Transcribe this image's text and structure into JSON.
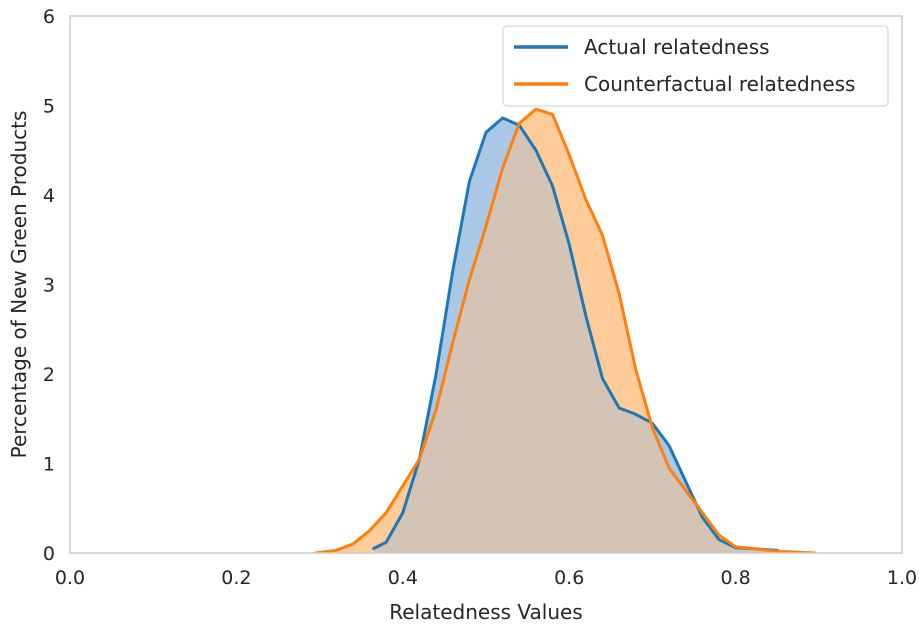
{
  "chart_data": {
    "type": "area",
    "title": "",
    "xlabel": "Relatedness Values",
    "ylabel": "Percentage of New Green Products",
    "xlim": [
      0.0,
      1.0
    ],
    "ylim": [
      0,
      6
    ],
    "xticks": [
      0.0,
      0.2,
      0.4,
      0.6,
      0.8,
      1.0
    ],
    "xtick_labels": [
      "0.0",
      "0.2",
      "0.4",
      "0.6",
      "0.8",
      "1.0"
    ],
    "yticks": [
      0,
      1,
      2,
      3,
      4,
      5,
      6
    ],
    "ytick_labels": [
      "0",
      "1",
      "2",
      "3",
      "4",
      "5",
      "6"
    ],
    "grid": false,
    "legend_position": "top-right",
    "series": [
      {
        "name": "Actual relatedness",
        "color": "#1f77b4",
        "fill_color": "#a8c8e6",
        "points": [
          [
            0.365,
            0.05
          ],
          [
            0.38,
            0.12
          ],
          [
            0.4,
            0.45
          ],
          [
            0.42,
            1.05
          ],
          [
            0.44,
            2.0
          ],
          [
            0.46,
            3.15
          ],
          [
            0.48,
            4.15
          ],
          [
            0.5,
            4.7
          ],
          [
            0.52,
            4.86
          ],
          [
            0.54,
            4.78
          ],
          [
            0.56,
            4.5
          ],
          [
            0.58,
            4.1
          ],
          [
            0.6,
            3.45
          ],
          [
            0.62,
            2.65
          ],
          [
            0.64,
            1.95
          ],
          [
            0.66,
            1.62
          ],
          [
            0.68,
            1.55
          ],
          [
            0.7,
            1.45
          ],
          [
            0.72,
            1.2
          ],
          [
            0.74,
            0.8
          ],
          [
            0.76,
            0.4
          ],
          [
            0.78,
            0.15
          ],
          [
            0.8,
            0.06
          ],
          [
            0.85,
            0.03
          ]
        ]
      },
      {
        "name": "Counterfactual relatedness",
        "color": "#ff7f0e",
        "fill_color": "#ffcc99",
        "points": [
          [
            0.295,
            0.0
          ],
          [
            0.32,
            0.03
          ],
          [
            0.34,
            0.1
          ],
          [
            0.36,
            0.25
          ],
          [
            0.38,
            0.45
          ],
          [
            0.4,
            0.75
          ],
          [
            0.42,
            1.05
          ],
          [
            0.44,
            1.6
          ],
          [
            0.46,
            2.35
          ],
          [
            0.48,
            3.05
          ],
          [
            0.5,
            3.65
          ],
          [
            0.52,
            4.3
          ],
          [
            0.54,
            4.8
          ],
          [
            0.56,
            4.96
          ],
          [
            0.58,
            4.9
          ],
          [
            0.6,
            4.45
          ],
          [
            0.62,
            3.95
          ],
          [
            0.64,
            3.55
          ],
          [
            0.66,
            2.9
          ],
          [
            0.68,
            2.05
          ],
          [
            0.7,
            1.4
          ],
          [
            0.72,
            0.95
          ],
          [
            0.74,
            0.7
          ],
          [
            0.76,
            0.45
          ],
          [
            0.78,
            0.2
          ],
          [
            0.8,
            0.07
          ],
          [
            0.85,
            0.02
          ],
          [
            0.895,
            0.0
          ]
        ]
      }
    ]
  },
  "colors": {
    "overlap_fill": "#d4c4b5",
    "axes_frame": "#cccccc"
  }
}
